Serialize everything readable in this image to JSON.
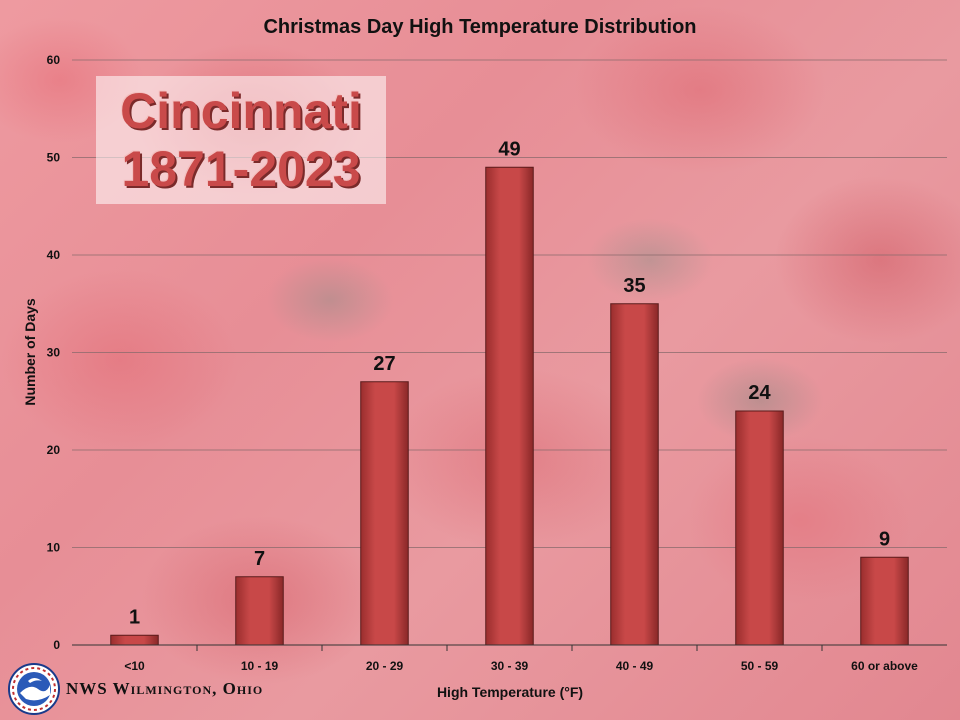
{
  "chart_data": {
    "type": "bar",
    "title": "Christmas Day High Temperature Distribution",
    "xlabel": "High Temperature (°F)",
    "ylabel": "Number of Days",
    "categories": [
      "<10",
      "10 - 19",
      "20 - 29",
      "30 - 39",
      "40 - 49",
      "50 - 59",
      "60 or above"
    ],
    "values": [
      1,
      7,
      27,
      49,
      35,
      24,
      9
    ],
    "ylim": [
      0,
      60
    ],
    "yticks": [
      0,
      10,
      20,
      30,
      40,
      50,
      60
    ],
    "grid": true,
    "bar_color": "#c84848",
    "data_labels": true
  },
  "annotation": {
    "city": "Cincinnati",
    "years": "1871-2023"
  },
  "footer": {
    "org": "NWS Wilmington, Ohio",
    "logo_icon": "nws-logo-icon"
  }
}
